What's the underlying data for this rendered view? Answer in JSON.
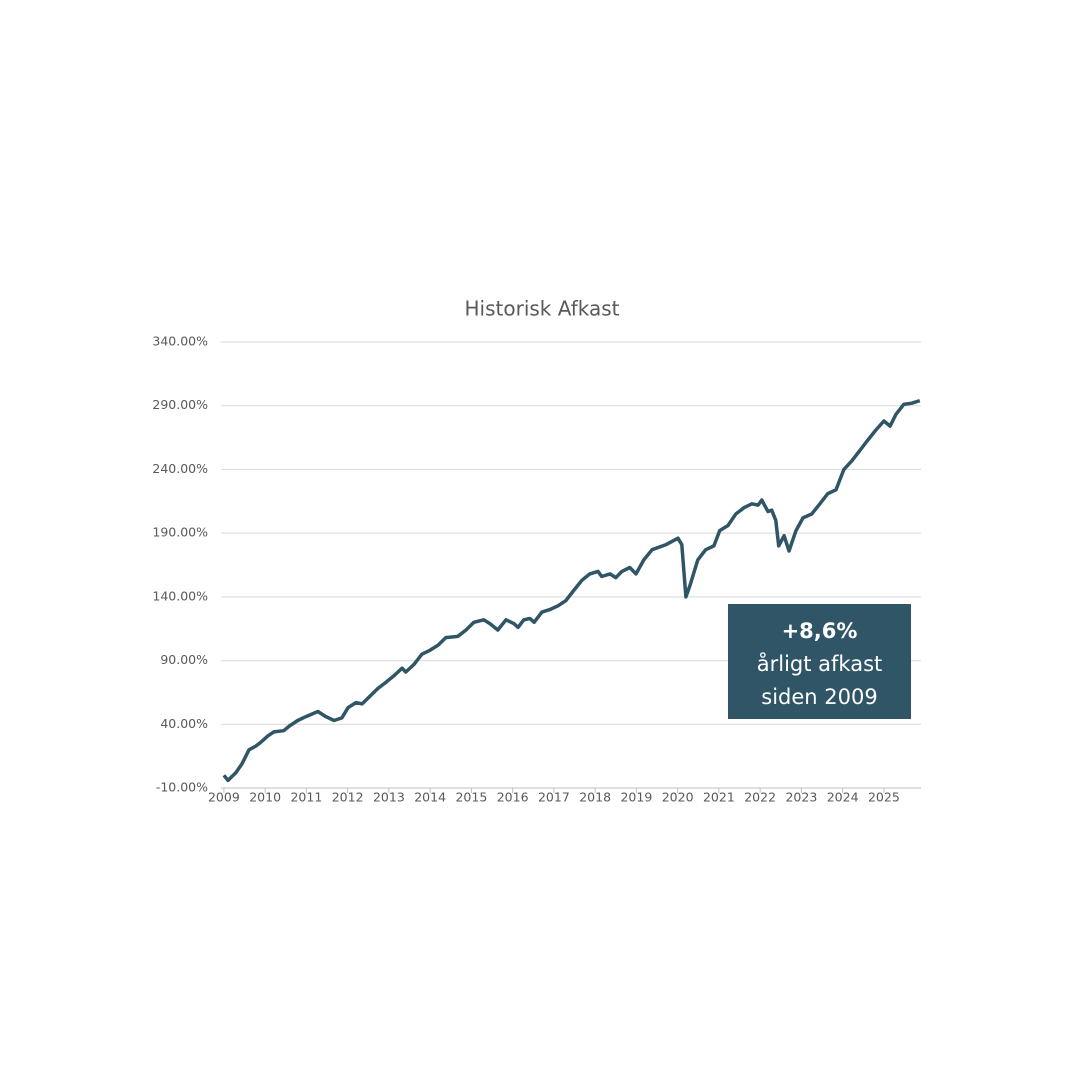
{
  "chart_data": {
    "type": "line",
    "title": "Historisk Afkast",
    "annotation": {
      "lines": [
        "+8,6%",
        "årligt afkast",
        "siden 2009"
      ],
      "background": "#2f5567",
      "text_color": "#ffffff"
    },
    "xlim": [
      2008.93,
      2025.9
    ],
    "xticks": [
      2009,
      2010,
      2011,
      2012,
      2013,
      2014,
      2015,
      2016,
      2017,
      2018,
      2019,
      2020,
      2021,
      2022,
      2023,
      2024,
      2025
    ],
    "ylim": [
      -10,
      340
    ],
    "yticks": [
      {
        "value": -10,
        "label": "-10.00%"
      },
      {
        "value": 40,
        "label": "40.00%"
      },
      {
        "value": 90,
        "label": "90.00%"
      },
      {
        "value": 140,
        "label": "140.00%"
      },
      {
        "value": 190,
        "label": "190.00%"
      },
      {
        "value": 240,
        "label": "240.00%"
      },
      {
        "value": 290,
        "label": "290.00%"
      },
      {
        "value": 340,
        "label": "340.00%"
      }
    ],
    "grid": true,
    "x": [
      2009.0,
      2009.1,
      2009.29,
      2009.44,
      2009.61,
      2009.78,
      2009.9,
      2010.07,
      2010.21,
      2010.45,
      2010.6,
      2010.79,
      2010.99,
      2011.28,
      2011.47,
      2011.67,
      2011.86,
      2012.01,
      2012.2,
      2012.35,
      2012.54,
      2012.73,
      2012.93,
      2013.12,
      2013.32,
      2013.41,
      2013.61,
      2013.8,
      2013.99,
      2014.19,
      2014.38,
      2014.67,
      2014.87,
      2015.06,
      2015.3,
      2015.45,
      2015.64,
      2015.84,
      2016.03,
      2016.13,
      2016.27,
      2016.42,
      2016.52,
      2016.71,
      2016.9,
      2017.1,
      2017.29,
      2017.48,
      2017.68,
      2017.87,
      2018.07,
      2018.16,
      2018.36,
      2018.5,
      2018.65,
      2018.84,
      2018.99,
      2019.18,
      2019.38,
      2019.72,
      2020.01,
      2020.1,
      2020.2,
      2020.3,
      2020.49,
      2020.68,
      2020.88,
      2021.02,
      2021.22,
      2021.41,
      2021.61,
      2021.8,
      2021.95,
      2022.04,
      2022.09,
      2022.19,
      2022.28,
      2022.38,
      2022.45,
      2022.58,
      2022.7,
      2022.87,
      2023.04,
      2023.25,
      2023.45,
      2023.64,
      2023.84,
      2024.03,
      2024.23,
      2024.42,
      2024.61,
      2024.81,
      2025.0,
      2025.15,
      2025.29,
      2025.48,
      2025.68,
      2025.87
    ],
    "series": [
      {
        "color": "#2f5567",
        "values": [
          0,
          -4,
          2,
          9,
          20,
          23,
          26,
          31,
          34,
          35,
          39,
          43,
          46,
          50,
          46,
          43,
          45,
          53,
          57,
          56,
          62,
          68,
          73,
          78,
          84,
          81,
          87,
          95,
          98,
          102,
          108,
          109,
          114,
          120,
          122,
          119,
          114,
          122,
          119,
          116,
          122,
          123,
          120,
          128,
          130,
          133,
          137,
          145,
          153,
          158,
          160,
          156,
          158,
          155,
          160,
          163,
          158,
          169,
          177,
          181,
          186,
          181,
          140,
          149,
          169,
          177,
          180,
          192,
          196,
          205,
          210,
          213,
          212,
          216,
          213,
          207,
          208,
          200,
          180,
          188,
          176,
          192,
          202,
          205,
          213,
          221,
          224,
          240,
          247,
          255,
          263,
          271,
          278,
          274,
          283,
          291,
          292,
          294
        ]
      }
    ]
  }
}
